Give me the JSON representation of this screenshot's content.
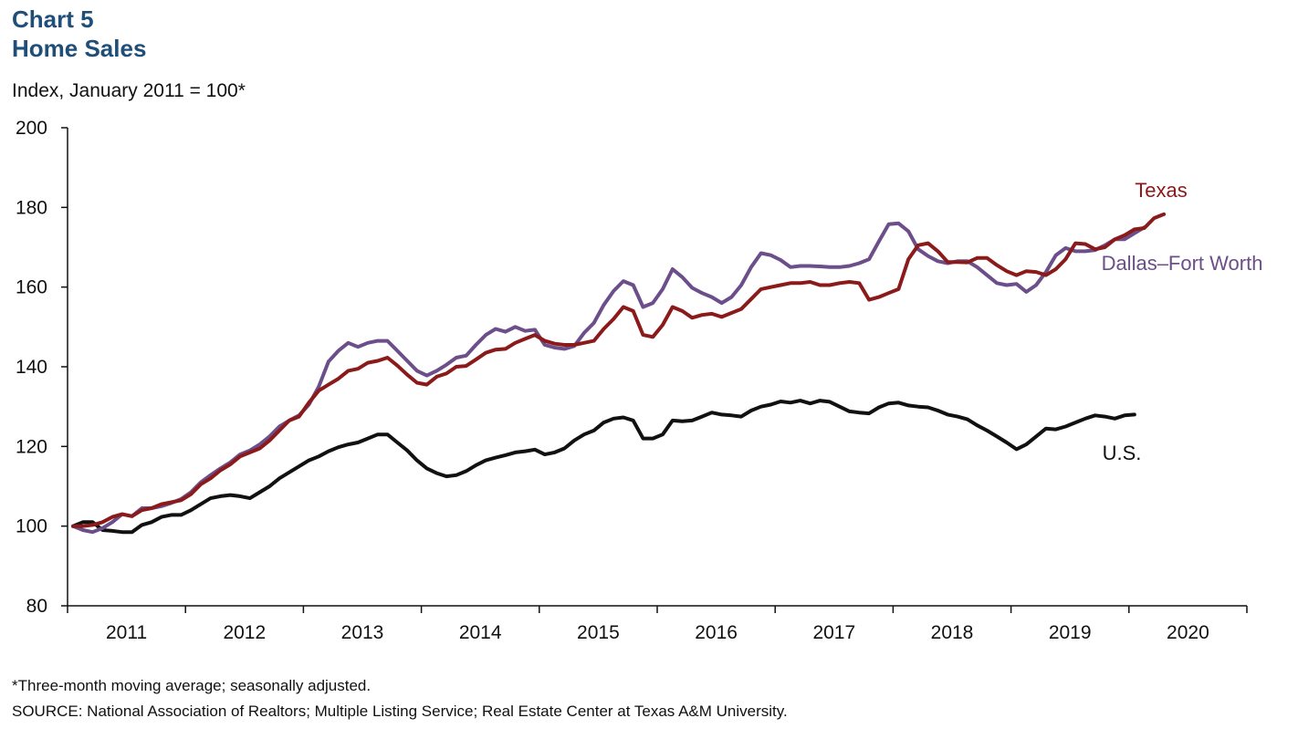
{
  "header": {
    "chart_number": "Chart 5",
    "title": "Home Sales",
    "units": "Index, January 2011 = 100*"
  },
  "footer": {
    "footnote": "*Three-month moving average; seasonally adjusted.",
    "source": "SOURCE: National Association of Realtors; Multiple Listing Service; Real Estate Center at Texas A&M University."
  },
  "chart_data": {
    "type": "line",
    "title": "Home Sales",
    "ylabel": "Index, January 2011 = 100*",
    "xlabel": "",
    "ylim": [
      80,
      200
    ],
    "yticks": [
      "80",
      "100",
      "120",
      "140",
      "160",
      "180",
      "200"
    ],
    "xticks": [
      "2011",
      "2012",
      "2013",
      "2014",
      "2015",
      "2016",
      "2017",
      "2018",
      "2019",
      "2020"
    ],
    "x_start": "2011-01",
    "grid": false,
    "series": [
      {
        "name": "Texas",
        "color": "#8b1a1a",
        "values": [
          100,
          100,
          100.3,
          101,
          102.3,
          103,
          102.5,
          104,
          104.5,
          105.5,
          106,
          106.5,
          108,
          110.5,
          112,
          114,
          115.5,
          117.5,
          118.5,
          119.5,
          121.5,
          124,
          126.5,
          127.5,
          131,
          134,
          135.5,
          137,
          139,
          139.5,
          141,
          141.5,
          142.3,
          140.3,
          138,
          136,
          135.5,
          137.5,
          138.3,
          140,
          140.2,
          141.8,
          143.5,
          144.3,
          144.5,
          146,
          147,
          148,
          146.5,
          145.8,
          145.5,
          145.5,
          146,
          146.5,
          149.5,
          152,
          155,
          154,
          148,
          147.5,
          150.5,
          155,
          154,
          152.3,
          153,
          153.3,
          152.5,
          153.5,
          154.5,
          157,
          159.5,
          160,
          160.5,
          161,
          161,
          161.3,
          160.5,
          160.5,
          161,
          161.3,
          161,
          156.8,
          157.5,
          158.5,
          159.5,
          167,
          170.5,
          171,
          169,
          166.3,
          166.3,
          166.2,
          167.3,
          167.3,
          165.5,
          164,
          163,
          164,
          163.8,
          163,
          164.5,
          167,
          171,
          170.8,
          169.5,
          170,
          172,
          173,
          174.5,
          174.8,
          177.3,
          178.3
        ]
      },
      {
        "name": "Dallas–Fort Worth",
        "color": "#6b4e8a",
        "values": [
          100,
          99,
          98.5,
          99.5,
          101,
          103,
          102.5,
          104.5,
          104.5,
          105,
          105.8,
          106.8,
          108.5,
          111,
          112.8,
          114.5,
          116,
          118,
          119,
          120.5,
          122.5,
          125,
          126.5,
          127.8,
          130.5,
          135,
          141.3,
          144,
          146,
          145,
          146,
          146.5,
          146.5,
          144,
          141.5,
          139,
          137.8,
          139,
          140.5,
          142.3,
          142.8,
          145.5,
          148,
          149.5,
          148.8,
          150,
          149,
          149.3,
          145.5,
          144.8,
          144.5,
          145.2,
          148.5,
          151,
          155.5,
          159,
          161.5,
          160.5,
          155,
          156,
          159.5,
          164.5,
          162.5,
          159.8,
          158.5,
          157.5,
          156,
          157.5,
          160.5,
          165,
          168.5,
          168,
          166.8,
          165,
          165.3,
          165.3,
          165.2,
          165,
          165,
          165.3,
          166,
          167,
          171.5,
          175.8,
          176,
          174,
          169.5,
          167.8,
          166.5,
          166,
          166.5,
          166.5,
          165,
          163,
          161,
          160.5,
          160.8,
          158.8,
          160.5,
          163.8,
          168,
          169.8,
          169,
          169,
          169.3,
          170.5,
          172,
          172,
          173.5,
          175
        ]
      },
      {
        "name": "U.S.",
        "color": "#111111",
        "values": [
          100,
          101,
          101,
          99,
          98.8,
          98.5,
          98.5,
          100.3,
          101,
          102.3,
          102.8,
          102.8,
          104,
          105.5,
          107,
          107.5,
          107.8,
          107.5,
          107,
          108.5,
          110,
          112,
          113.5,
          115,
          116.5,
          117.5,
          118.8,
          119.8,
          120.5,
          121,
          122,
          123,
          123,
          121,
          119,
          116.5,
          114.5,
          113.3,
          112.5,
          112.8,
          113.8,
          115.3,
          116.5,
          117.2,
          117.8,
          118.5,
          118.8,
          119.2,
          118,
          118.5,
          119.5,
          121.5,
          123,
          124,
          126,
          127,
          127.3,
          126.5,
          122,
          122,
          123,
          126.5,
          126.3,
          126.5,
          127.5,
          128.5,
          128,
          127.8,
          127.5,
          129,
          130,
          130.5,
          131.3,
          131,
          131.5,
          130.8,
          131.5,
          131.2,
          130,
          128.8,
          128.5,
          128.3,
          129.8,
          130.8,
          131,
          130.3,
          130,
          129.8,
          129,
          128,
          127.5,
          126.8,
          125.3,
          124,
          122.5,
          121,
          119.3,
          120.5,
          122.5,
          124.5,
          124.3,
          125,
          126,
          127,
          127.8,
          127.5,
          127,
          127.8,
          128
        ]
      }
    ]
  }
}
